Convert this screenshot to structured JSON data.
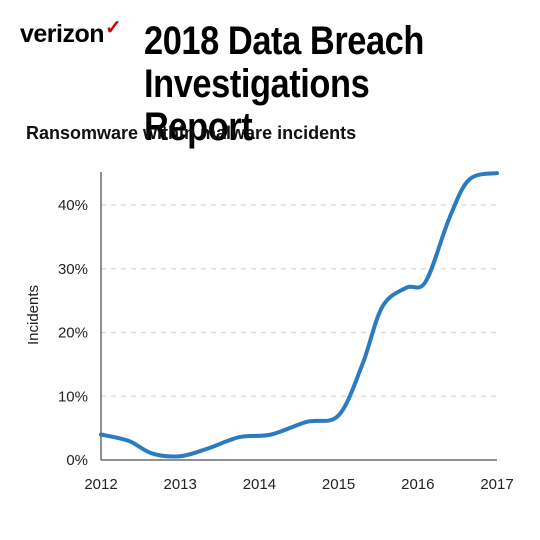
{
  "header": {
    "brand": "verizon",
    "brand_mark": "✓",
    "brand_color": "#cd040b",
    "report_title_line1": "2018 Data Breach",
    "report_title_line2": "Investigations Report"
  },
  "chart_data": {
    "type": "line",
    "title": "Ransomware within malware incidents",
    "xlabel": "",
    "ylabel": "Incidents",
    "x": [
      2012,
      2013,
      2014,
      2015,
      2016,
      2017
    ],
    "x_tick_labels": [
      "2012",
      "2013",
      "2014",
      "2015",
      "2016",
      "2017"
    ],
    "y_tick_labels": [
      "0%",
      "10%",
      "20%",
      "30%",
      "40%"
    ],
    "y_ticks": [
      0,
      10,
      20,
      30,
      40
    ],
    "xlim": [
      2012,
      2017
    ],
    "ylim": [
      0,
      45
    ],
    "grid": "horizontal dashed",
    "line_color": "#2b7bc0",
    "series": [
      {
        "name": "",
        "points": [
          [
            2012.0,
            4.0
          ],
          [
            2012.35,
            3.0
          ],
          [
            2012.65,
            1.0
          ],
          [
            2013.0,
            0.6
          ],
          [
            2013.35,
            1.8
          ],
          [
            2013.75,
            3.6
          ],
          [
            2014.15,
            4.0
          ],
          [
            2014.6,
            6.0
          ],
          [
            2015.0,
            7.0
          ],
          [
            2015.3,
            15.0
          ],
          [
            2015.55,
            24.0
          ],
          [
            2015.85,
            27.0
          ],
          [
            2016.1,
            28.0
          ],
          [
            2016.4,
            38.0
          ],
          [
            2016.65,
            44.0
          ],
          [
            2017.0,
            45.0
          ]
        ]
      }
    ]
  }
}
